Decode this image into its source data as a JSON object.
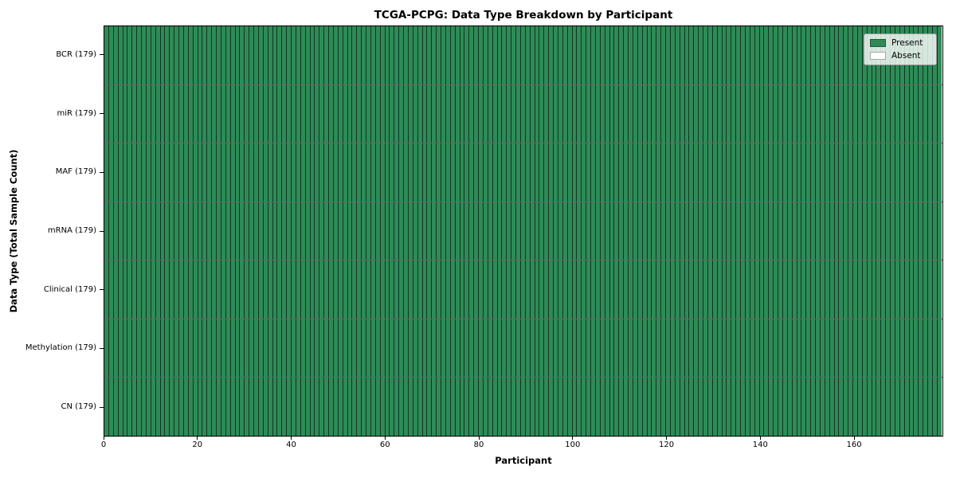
{
  "chart_data": {
    "type": "heatmap",
    "title": "TCGA-PCPG: Data Type Breakdown by Participant",
    "xlabel": "Participant",
    "ylabel": "Data Type (Total Sample Count)",
    "x_ticks": [
      0,
      20,
      40,
      60,
      80,
      100,
      120,
      140,
      160
    ],
    "x_range": [
      0,
      179
    ],
    "n_participants": 179,
    "grid": false,
    "legend_position": "upper right",
    "legend": [
      {
        "label": "Present",
        "color": "#2e8b57"
      },
      {
        "label": "Absent",
        "color": "#ffffff"
      }
    ],
    "rows": [
      {
        "label": "BCR (179)",
        "data_type": "BCR",
        "total_samples": 179,
        "present_count": 179,
        "absent_count": 0
      },
      {
        "label": "miR (179)",
        "data_type": "miR",
        "total_samples": 179,
        "present_count": 179,
        "absent_count": 0
      },
      {
        "label": "MAF (179)",
        "data_type": "MAF",
        "total_samples": 179,
        "present_count": 179,
        "absent_count": 0
      },
      {
        "label": "mRNA (179)",
        "data_type": "mRNA",
        "total_samples": 179,
        "present_count": 179,
        "absent_count": 0
      },
      {
        "label": "Clinical (179)",
        "data_type": "Clinical",
        "total_samples": 179,
        "present_count": 179,
        "absent_count": 0
      },
      {
        "label": "Methylation (179)",
        "data_type": "Methylation",
        "total_samples": 179,
        "present_count": 179,
        "absent_count": 0
      },
      {
        "label": "CN (179)",
        "data_type": "CN",
        "total_samples": 179,
        "present_count": 179,
        "absent_count": 0
      }
    ],
    "colors": {
      "present": "#2e8b57",
      "absent": "#ffffff",
      "spine": "#000000"
    }
  }
}
